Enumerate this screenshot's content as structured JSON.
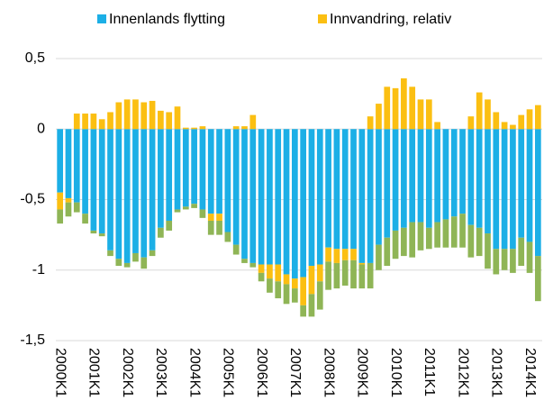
{
  "chart_data": {
    "type": "bar",
    "stacked": true,
    "categories": [
      "2000K1",
      null,
      null,
      null,
      "2001K1",
      null,
      null,
      null,
      "2002K1",
      null,
      null,
      null,
      "2003K1",
      null,
      null,
      null,
      "2004K1",
      null,
      null,
      null,
      "2005K1",
      null,
      null,
      null,
      "2006K1",
      null,
      null,
      null,
      "2007K1",
      null,
      null,
      null,
      "2008K1",
      null,
      null,
      null,
      "2009K1",
      null,
      null,
      null,
      "2010K1",
      null,
      null,
      null,
      "2011K1",
      null,
      null,
      null,
      "2012K1",
      null,
      null,
      null,
      "2013K1",
      null,
      null,
      null,
      "2014K1",
      null
    ],
    "series": [
      {
        "name": "Innenlands flytting",
        "color": "#1cafe6",
        "values": [
          -0.45,
          -0.49,
          -0.52,
          -0.6,
          -0.72,
          -0.74,
          -0.86,
          -0.92,
          -0.95,
          -0.88,
          -0.91,
          -0.86,
          -0.7,
          -0.65,
          -0.57,
          -0.55,
          -0.53,
          -0.57,
          -0.6,
          -0.6,
          -0.73,
          -0.82,
          -0.92,
          -0.95,
          -0.96,
          -0.96,
          -0.96,
          -1.03,
          -1.06,
          -1.05,
          -0.97,
          -0.96,
          -0.84,
          -0.85,
          -0.85,
          -0.85,
          -0.95,
          -0.95,
          -0.82,
          -0.77,
          -0.72,
          -0.7,
          -0.66,
          -0.66,
          -0.7,
          -0.66,
          -0.64,
          -0.62,
          -0.6,
          -0.68,
          -0.7,
          -0.74,
          -0.85,
          -0.85,
          -0.85,
          -0.77,
          -0.8,
          -0.9
        ]
      },
      {
        "name": "Innvandring, relativ",
        "color": "#fbbf12",
        "values": [
          -0.12,
          -0.03,
          0.11,
          0.11,
          0.11,
          0.07,
          0.12,
          0.19,
          0.21,
          0.21,
          0.19,
          0.2,
          0.13,
          0.12,
          0.16,
          0.01,
          0.01,
          0.02,
          -0.05,
          -0.05,
          0,
          0.02,
          0.02,
          0.1,
          -0.06,
          -0.1,
          -0.12,
          -0.07,
          -0.07,
          -0.2,
          -0.2,
          -0.12,
          -0.1,
          -0.1,
          -0.08,
          -0.08,
          -0.01,
          0.09,
          0.18,
          0.3,
          0.29,
          0.36,
          0.3,
          0.21,
          0.21,
          0.05,
          0,
          0,
          0,
          0.09,
          0.26,
          0.21,
          0.12,
          0.05,
          0.03,
          0.1,
          0.14,
          0.17
        ]
      },
      {
        "color": "#8fb556",
        "values": [
          -0.1,
          -0.1,
          -0.07,
          -0.07,
          -0.02,
          -0.02,
          -0.04,
          -0.05,
          -0.03,
          -0.06,
          -0.08,
          -0.04,
          -0.07,
          -0.07,
          -0.02,
          -0.02,
          -0.03,
          -0.06,
          -0.1,
          -0.1,
          -0.07,
          -0.07,
          -0.03,
          -0.03,
          -0.06,
          -0.1,
          -0.12,
          -0.14,
          -0.1,
          -0.08,
          -0.16,
          -0.2,
          -0.2,
          -0.18,
          -0.18,
          -0.2,
          -0.17,
          -0.18,
          -0.18,
          -0.2,
          -0.2,
          -0.2,
          -0.25,
          -0.2,
          -0.15,
          -0.18,
          -0.2,
          -0.22,
          -0.24,
          -0.23,
          -0.2,
          -0.25,
          -0.18,
          -0.15,
          -0.17,
          -0.2,
          -0.22,
          -0.32
        ]
      }
    ],
    "ylim": [
      -1.5,
      0.5
    ],
    "yticks": [
      {
        "value": 0.5,
        "label": "0,5"
      },
      0,
      {
        "value": -0.5,
        "label": "-0,5"
      },
      {
        "value": -1,
        "label": "-1"
      },
      {
        "value": -1.5,
        "label": "-1,5"
      }
    ],
    "grid": true,
    "legend": "top"
  }
}
